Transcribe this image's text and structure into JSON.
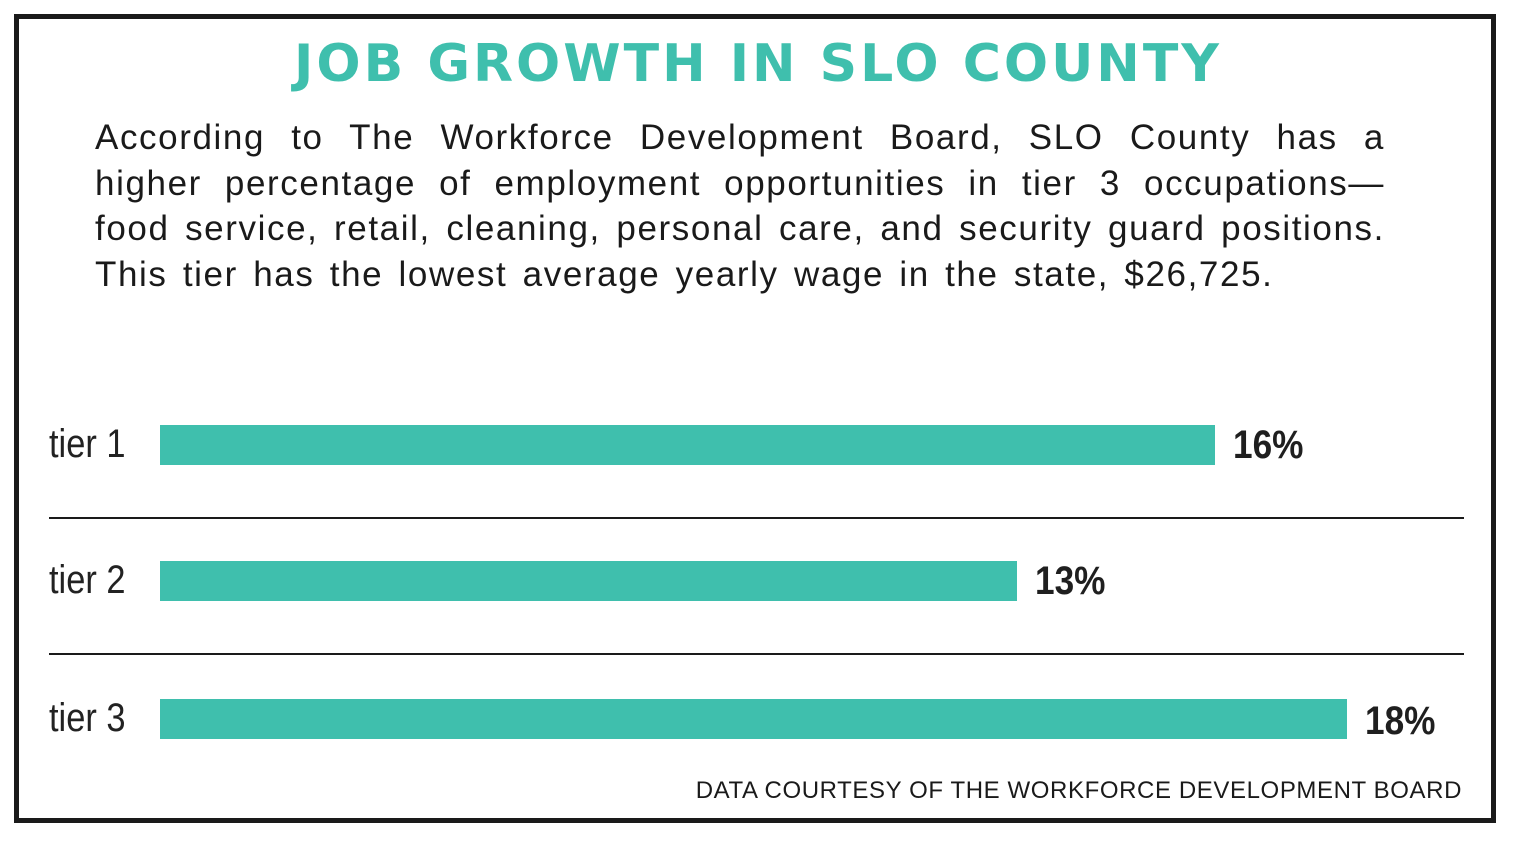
{
  "chart_data": {
    "type": "bar",
    "orientation": "horizontal",
    "title": "JOB GROWTH IN SLO COUNTY",
    "subtitle": "According to The Workforce Development Board, SLO County has a higher percentage of employment opportunities in tier 3 occupations—food service, retail, cleaning, personal care, and security guard positions. This tier has the lowest average yearly wage in the state, $26,725.",
    "categories": [
      "tier 1",
      "tier 2",
      "tier 3"
    ],
    "values": [
      16,
      13,
      18
    ],
    "value_labels": [
      "16%",
      "13%",
      "18%"
    ],
    "xlim": [
      0,
      18
    ],
    "grid": false,
    "bar_color": "#3fbfad",
    "source": "DATA COURTESY OF THE WORKFORCE DEVELOPMENT BOARD"
  }
}
